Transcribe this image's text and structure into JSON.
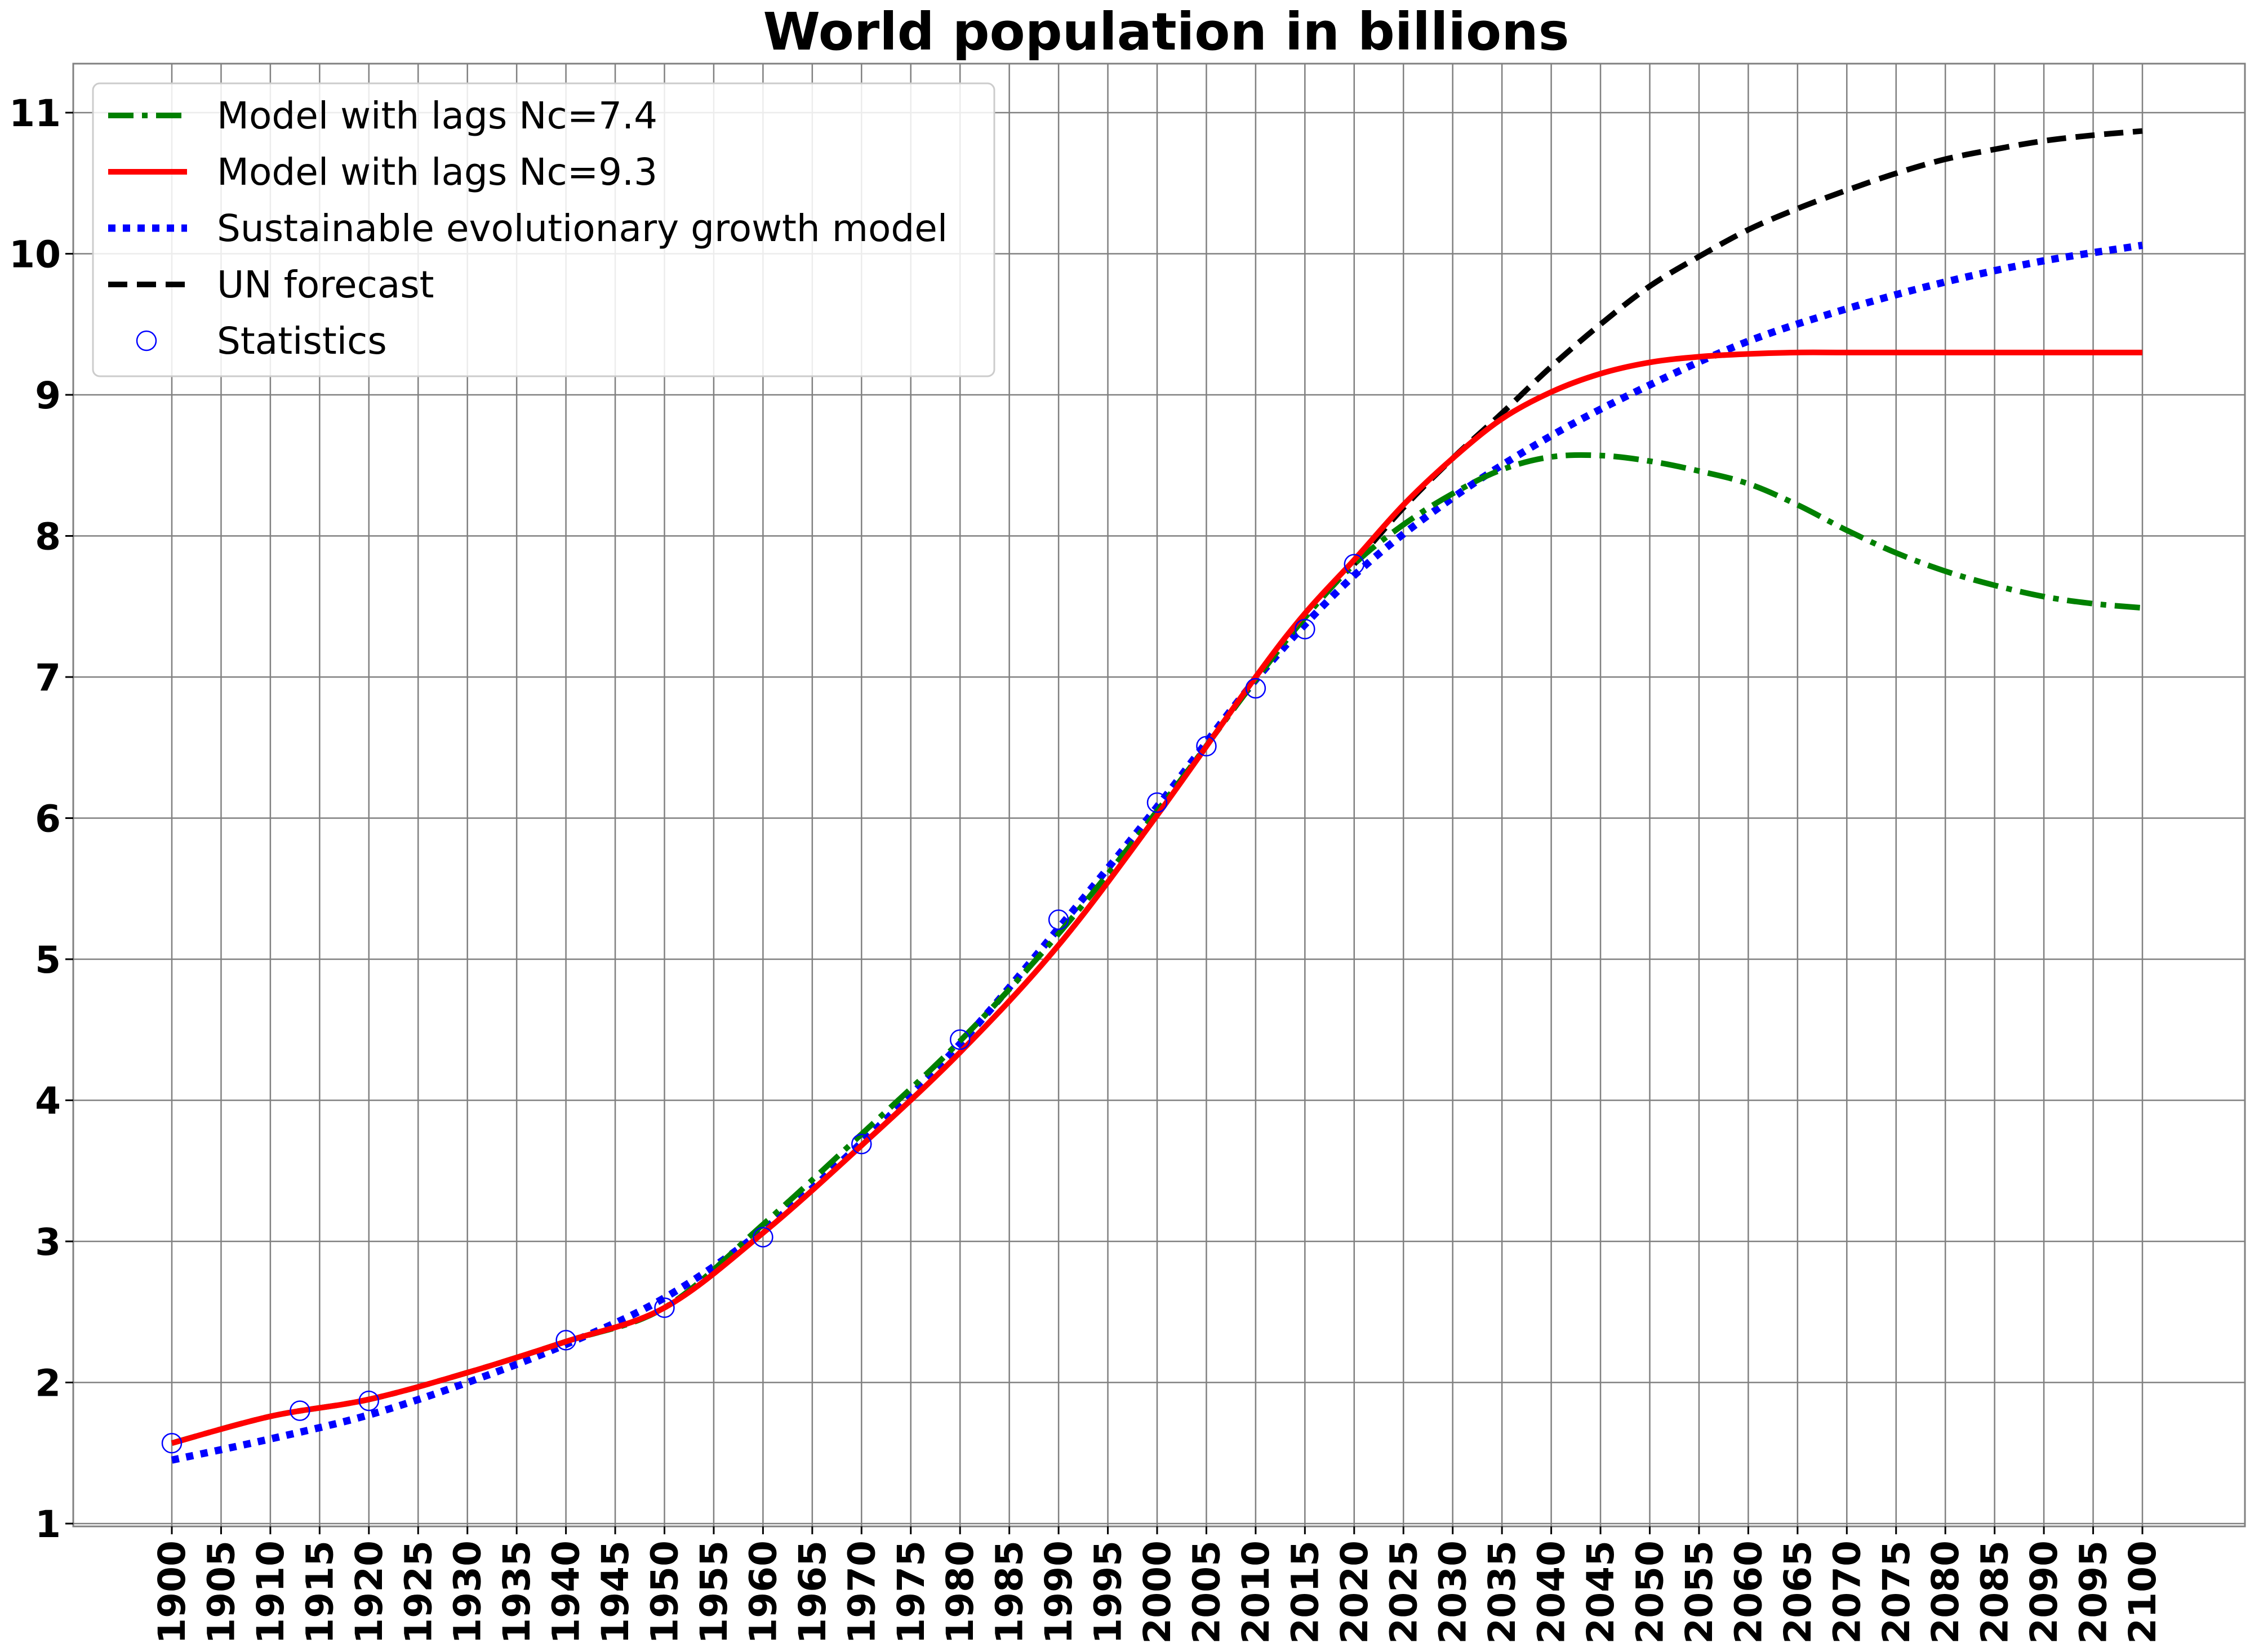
{
  "chart_data": {
    "type": "line",
    "title": "World population in billions",
    "xlabel": "",
    "ylabel": "",
    "xlim": [
      1895,
      2105
    ],
    "ylim": [
      1,
      11.35
    ],
    "grid": true,
    "legend_position": "top-left",
    "x_ticks": [
      1900,
      1905,
      1910,
      1915,
      1920,
      1925,
      1930,
      1935,
      1940,
      1945,
      1950,
      1955,
      1960,
      1965,
      1970,
      1975,
      1980,
      1985,
      1990,
      1995,
      2000,
      2005,
      2010,
      2015,
      2020,
      2025,
      2030,
      2035,
      2040,
      2045,
      2050,
      2055,
      2060,
      2065,
      2070,
      2075,
      2080,
      2085,
      2090,
      2095,
      2100
    ],
    "y_ticks": [
      1,
      2,
      3,
      4,
      5,
      6,
      7,
      8,
      9,
      10,
      11
    ],
    "series": [
      {
        "name": "Model with lags Nc=7.4",
        "color": "#008000",
        "style": "dashdot",
        "x": [
          1900,
          1910,
          1920,
          1930,
          1940,
          1950,
          1960,
          1970,
          1980,
          1990,
          2000,
          2010,
          2015,
          2020,
          2025,
          2030,
          2035,
          2040,
          2045,
          2050,
          2055,
          2060,
          2065,
          2070,
          2075,
          2080,
          2085,
          2090,
          2095,
          2100
        ],
        "y": [
          1.57,
          1.76,
          1.88,
          2.07,
          2.29,
          2.53,
          3.12,
          3.76,
          4.42,
          5.18,
          6.05,
          6.98,
          7.42,
          7.8,
          8.08,
          8.3,
          8.47,
          8.56,
          8.57,
          8.53,
          8.46,
          8.37,
          8.22,
          8.04,
          7.88,
          7.75,
          7.65,
          7.57,
          7.52,
          7.49
        ]
      },
      {
        "name": "Model with lags Nc=9.3",
        "color": "#ff0000",
        "style": "solid",
        "x": [
          1900,
          1910,
          1920,
          1930,
          1940,
          1950,
          1960,
          1970,
          1980,
          1990,
          2000,
          2010,
          2015,
          2020,
          2025,
          2030,
          2035,
          2040,
          2045,
          2050,
          2055,
          2060,
          2065,
          2070,
          2080,
          2090,
          2100
        ],
        "y": [
          1.57,
          1.76,
          1.88,
          2.07,
          2.29,
          2.53,
          3.06,
          3.68,
          4.34,
          5.1,
          6.02,
          7.0,
          7.45,
          7.83,
          8.22,
          8.55,
          8.83,
          9.02,
          9.15,
          9.23,
          9.27,
          9.29,
          9.3,
          9.3,
          9.3,
          9.3,
          9.3
        ]
      },
      {
        "name": "Sustainable evolutionary growth model",
        "color": "#0000ff",
        "style": "dotted",
        "x": [
          1900,
          1910,
          1920,
          1930,
          1940,
          1950,
          1960,
          1970,
          1980,
          1990,
          2000,
          2010,
          2020,
          2030,
          2040,
          2050,
          2060,
          2070,
          2080,
          2090,
          2100
        ],
        "y": [
          1.45,
          1.6,
          1.77,
          2.0,
          2.27,
          2.6,
          3.08,
          3.7,
          4.4,
          5.22,
          6.08,
          6.98,
          7.72,
          8.27,
          8.71,
          9.07,
          9.38,
          9.61,
          9.8,
          9.95,
          10.06
        ]
      },
      {
        "name": "UN forecast",
        "color": "#000000",
        "style": "dashed",
        "x": [
          2020,
          2025,
          2030,
          2035,
          2040,
          2045,
          2050,
          2055,
          2060,
          2065,
          2070,
          2075,
          2080,
          2085,
          2090,
          2095,
          2100
        ],
        "y": [
          7.8,
          8.2,
          8.55,
          8.87,
          9.2,
          9.5,
          9.77,
          9.98,
          10.17,
          10.32,
          10.45,
          10.57,
          10.67,
          10.74,
          10.8,
          10.84,
          10.87
        ]
      },
      {
        "name": "Statistics",
        "color": "#0000ff",
        "style": "markers",
        "x": [
          1900,
          1913,
          1920,
          1940,
          1950,
          1960,
          1970,
          1980,
          1990,
          2000,
          2005,
          2010,
          2015,
          2020
        ],
        "y": [
          1.57,
          1.8,
          1.87,
          2.3,
          2.53,
          3.03,
          3.69,
          4.43,
          5.28,
          6.11,
          6.51,
          6.92,
          7.34,
          7.8
        ]
      }
    ]
  }
}
